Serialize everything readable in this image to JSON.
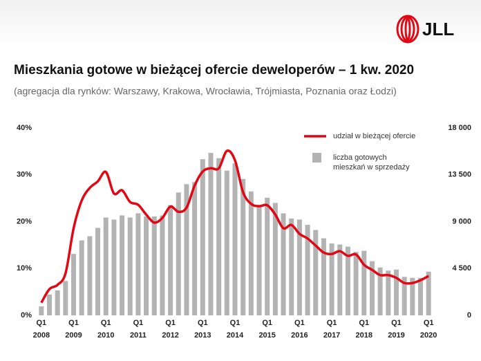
{
  "logo": "JLL",
  "chart_data": {
    "type": "bar-line",
    "title": "Mieszkania gotowe w bieżącej ofercie deweloperów – 1 kw. 2020",
    "subtitle": "(agregacja dla rynków: Warszawy, Krakowa, Wrocławia, Trójmiasta, Poznania oraz Łodzi)",
    "categories": [
      "Q1",
      null,
      null,
      null,
      "Q1",
      null,
      null,
      null,
      "Q1",
      null,
      null,
      null,
      "Q1",
      null,
      null,
      null,
      "Q1",
      null,
      null,
      null,
      "Q1",
      null,
      null,
      null,
      "Q1",
      null,
      null,
      null,
      "Q1",
      null,
      null,
      null,
      "Q1",
      null,
      null,
      null,
      "Q1",
      null,
      null,
      null,
      "Q1",
      null,
      null,
      null,
      "Q1",
      null,
      null,
      null,
      "Q1"
    ],
    "years": [
      "2008",
      "2009",
      "2010",
      "2011",
      "2012",
      "2013",
      "2014",
      "2015",
      "2016",
      "2017",
      "2018",
      "2019",
      "2020"
    ],
    "ylim": [
      0,
      40
    ],
    "yticks": [
      {
        "value": 0,
        "label": "0%"
      },
      {
        "value": 10,
        "label": "10%"
      },
      {
        "value": 20,
        "label": "20%"
      },
      {
        "value": 30,
        "label": "30%"
      },
      {
        "value": 40,
        "label": "40%"
      }
    ],
    "y2lim": [
      0,
      18000
    ],
    "y2ticks": [
      0,
      {
        "value": 4500,
        "label": "4 500"
      },
      {
        "value": 9000,
        "label": "9 000"
      },
      {
        "value": 13500,
        "label": "13 500"
      },
      {
        "value": 18000,
        "label": "18 000"
      }
    ],
    "series": [
      {
        "name": "liczba gotowych mieszkań w sprzedaży",
        "type": "bar",
        "axis": "y2",
        "color": "#b3b3b3",
        "values": [
          860,
          2000,
          2400,
          3300,
          5900,
          7200,
          7600,
          8400,
          9400,
          9200,
          9600,
          9400,
          9800,
          9500,
          9500,
          9600,
          10600,
          11800,
          12600,
          12800,
          15000,
          15600,
          15100,
          13900,
          14600,
          13100,
          11900,
          10600,
          11300,
          10800,
          9800,
          9300,
          9200,
          8700,
          8200,
          7400,
          6900,
          6800,
          6600,
          6100,
          6200,
          5200,
          4600,
          4300,
          4400,
          3700,
          3600,
          3600,
          4200
        ]
      },
      {
        "name": "udział w bieżącej ofercie",
        "type": "line",
        "axis": "y",
        "color": "#e30613",
        "values": [
          2.7,
          5.6,
          6.5,
          9.0,
          18.6,
          24.5,
          27.2,
          28.6,
          30.6,
          26.0,
          26.7,
          24.2,
          23.6,
          21.5,
          19.8,
          20.8,
          23.2,
          22.1,
          23.0,
          27.7,
          30.7,
          31.4,
          31.4,
          35.1,
          33.1,
          26.3,
          23.8,
          23.3,
          23.5,
          21.5,
          18.6,
          19.3,
          17.4,
          16.4,
          14.9,
          13.4,
          13.1,
          13.7,
          12.7,
          13.0,
          10.8,
          9.7,
          8.6,
          8.6,
          8.0,
          6.9,
          6.9,
          7.5,
          8.4
        ]
      }
    ]
  }
}
